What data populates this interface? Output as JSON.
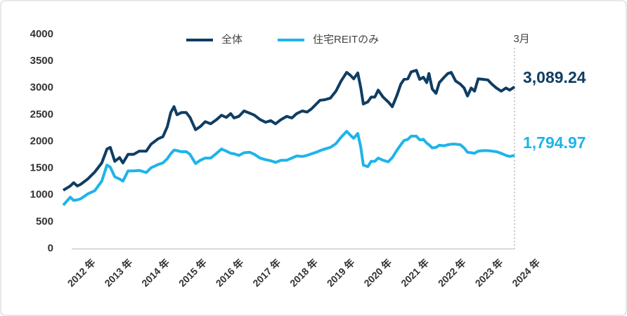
{
  "chart_data": {
    "type": "line",
    "annotation": "3月",
    "xlim": [
      2012,
      2024.18
    ],
    "xticks": [
      {
        "value": 2012,
        "label": "2012 年"
      },
      {
        "value": 2013,
        "label": "2013 年"
      },
      {
        "value": 2014,
        "label": "2014 年"
      },
      {
        "value": 2015,
        "label": "2015 年"
      },
      {
        "value": 2016,
        "label": "2016 年"
      },
      {
        "value": 2017,
        "label": "2017 年"
      },
      {
        "value": 2018,
        "label": "2018 年"
      },
      {
        "value": 2019,
        "label": "2019 年"
      },
      {
        "value": 2020,
        "label": "2020 年"
      },
      {
        "value": 2021,
        "label": "2021 年"
      },
      {
        "value": 2022,
        "label": "2022 年"
      },
      {
        "value": 2023,
        "label": "2023 年"
      },
      {
        "value": 2024,
        "label": "2024 年"
      }
    ],
    "ylim": [
      0,
      4000
    ],
    "yticks": [
      0,
      500,
      1000,
      1500,
      2000,
      2500,
      3000,
      3500,
      4000
    ],
    "grid": false,
    "legend": "top",
    "x": [
      2012,
      2012.19,
      2012.28,
      2012.38,
      2012.47,
      2012.66,
      2012.85,
      2013.04,
      2013.18,
      2013.27,
      2013.39,
      2013.52,
      2013.61,
      2013.75,
      2013.9,
      2014.05,
      2014.24,
      2014.37,
      2014.56,
      2014.69,
      2014.81,
      2014.9,
      2014.99,
      2015.07,
      2015.19,
      2015.32,
      2015.42,
      2015.57,
      2015.7,
      2015.83,
      2015.98,
      2016.14,
      2016.27,
      2016.4,
      2016.52,
      2016.61,
      2016.74,
      2016.88,
      2017.03,
      2017.16,
      2017.31,
      2017.46,
      2017.6,
      2017.73,
      2017.88,
      2018.03,
      2018.17,
      2018.3,
      2018.45,
      2018.58,
      2018.7,
      2018.83,
      2018.93,
      2019.06,
      2019.21,
      2019.36,
      2019.5,
      2019.65,
      2019.76,
      2019.84,
      2019.95,
      2020.03,
      2020.1,
      2020.22,
      2020.31,
      2020.41,
      2020.5,
      2020.63,
      2020.77,
      2020.88,
      2021.01,
      2021.11,
      2021.2,
      2021.3,
      2021.39,
      2021.53,
      2021.62,
      2021.72,
      2021.81,
      2021.87,
      2021.96,
      2022.06,
      2022.15,
      2022.28,
      2022.38,
      2022.47,
      2022.59,
      2022.72,
      2022.82,
      2022.91,
      2023.01,
      2023.1,
      2023.2,
      2023.33,
      2023.46,
      2023.57,
      2023.69,
      2023.82,
      2023.95,
      2024.05,
      2024.18
    ],
    "series": [
      {
        "name": "全体",
        "color": "#0f3d63",
        "end_label": "3,089.24",
        "values": [
          1090,
          1170,
          1230,
          1170,
          1200,
          1300,
          1430,
          1600,
          1860,
          1890,
          1630,
          1700,
          1600,
          1760,
          1760,
          1820,
          1820,
          1950,
          2050,
          2090,
          2280,
          2540,
          2650,
          2500,
          2540,
          2540,
          2450,
          2220,
          2280,
          2370,
          2330,
          2410,
          2490,
          2450,
          2520,
          2440,
          2470,
          2570,
          2530,
          2490,
          2410,
          2360,
          2390,
          2330,
          2410,
          2470,
          2440,
          2520,
          2570,
          2550,
          2610,
          2700,
          2770,
          2780,
          2810,
          2940,
          3130,
          3290,
          3230,
          3170,
          3280,
          3000,
          2700,
          2740,
          2830,
          2830,
          2960,
          2830,
          2740,
          2650,
          2870,
          3070,
          3160,
          3170,
          3300,
          3330,
          3160,
          3200,
          3100,
          3270,
          2980,
          2900,
          3100,
          3200,
          3270,
          3290,
          3130,
          3070,
          3000,
          2850,
          3000,
          2940,
          3170,
          3160,
          3150,
          3070,
          3000,
          2940,
          3000,
          2960,
          3020
        ]
      },
      {
        "name": "住宅REITのみ",
        "color": "#1eb4ea",
        "end_label": "1,794.97",
        "values": [
          810,
          960,
          900,
          910,
          930,
          1020,
          1080,
          1260,
          1560,
          1520,
          1340,
          1300,
          1260,
          1450,
          1450,
          1460,
          1420,
          1510,
          1570,
          1600,
          1680,
          1770,
          1840,
          1830,
          1810,
          1810,
          1760,
          1590,
          1650,
          1690,
          1690,
          1780,
          1860,
          1820,
          1780,
          1770,
          1740,
          1790,
          1800,
          1760,
          1690,
          1660,
          1640,
          1610,
          1650,
          1650,
          1690,
          1730,
          1720,
          1740,
          1770,
          1800,
          1830,
          1860,
          1890,
          1960,
          2080,
          2190,
          2110,
          2060,
          2150,
          1890,
          1560,
          1530,
          1630,
          1630,
          1690,
          1650,
          1620,
          1700,
          1840,
          1940,
          2020,
          2040,
          2100,
          2100,
          2030,
          2040,
          1970,
          1940,
          1880,
          1890,
          1930,
          1920,
          1940,
          1950,
          1950,
          1940,
          1880,
          1800,
          1790,
          1780,
          1820,
          1830,
          1830,
          1820,
          1810,
          1780,
          1740,
          1720,
          1740
        ]
      }
    ]
  }
}
